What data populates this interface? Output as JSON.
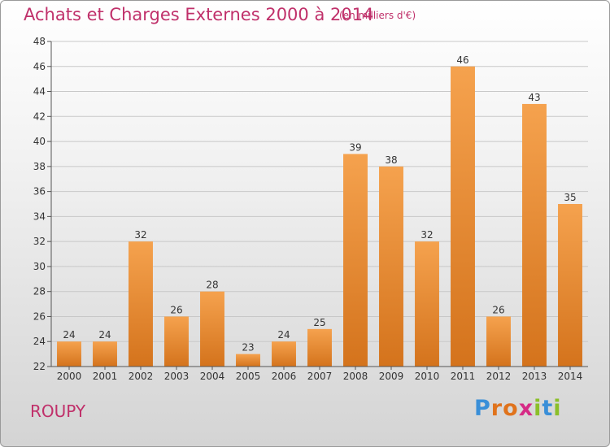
{
  "header": {
    "title": "Achats et Charges Externes 2000 à 2014",
    "unit": "(en milliers d'€)"
  },
  "footer": {
    "commune": "ROUPY",
    "logo_text": "Proxiti"
  },
  "colors": {
    "title": "#c0306a",
    "bar_light": "#f5a24e",
    "bar_dark": "#d4731c",
    "grid": "#c8c8c8"
  },
  "chart_data": {
    "type": "bar",
    "title": "Achats et Charges Externes 2000 à 2014",
    "subtitle": "(en milliers d'€)",
    "xlabel": "",
    "ylabel": "",
    "categories": [
      "2000",
      "2001",
      "2002",
      "2003",
      "2004",
      "2005",
      "2006",
      "2007",
      "2008",
      "2009",
      "2010",
      "2011",
      "2012",
      "2013",
      "2014"
    ],
    "values": [
      24,
      24,
      32,
      26,
      28,
      23,
      24,
      25,
      39,
      38,
      32,
      46,
      26,
      43,
      35
    ],
    "ylim": [
      22,
      48
    ],
    "yticks": [
      22,
      24,
      26,
      28,
      30,
      32,
      34,
      36,
      38,
      40,
      42,
      44,
      46,
      48
    ],
    "grid": true,
    "data_labels": true
  }
}
